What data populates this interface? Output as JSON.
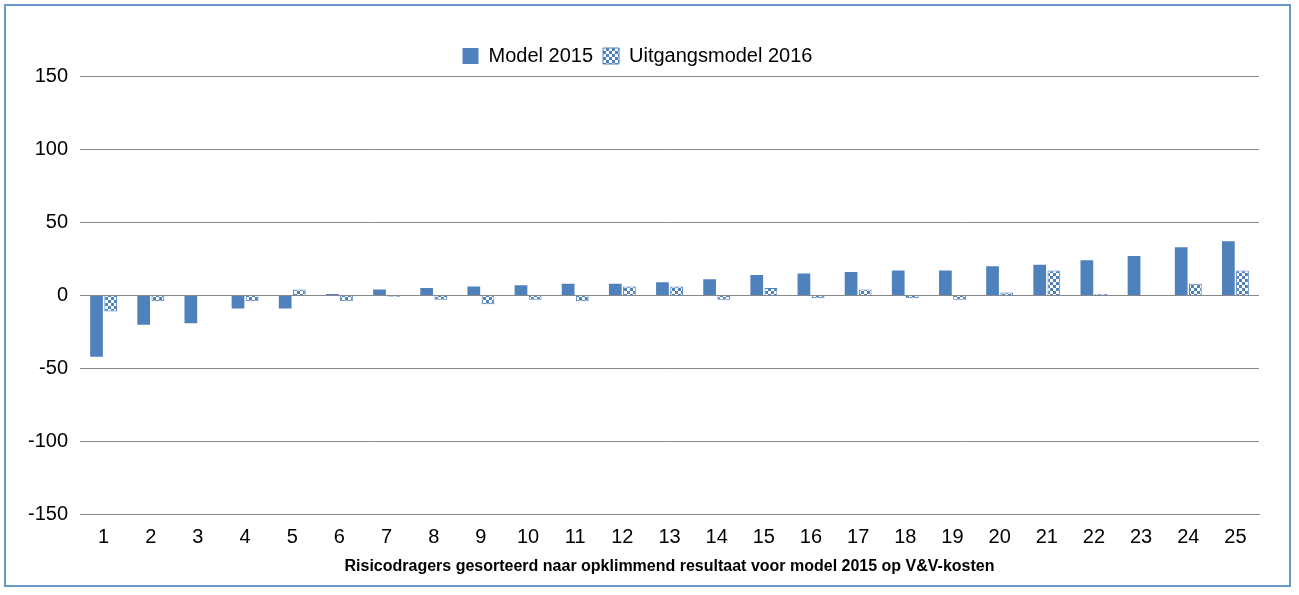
{
  "chart_data": {
    "type": "bar",
    "x_label": "Risicodragers gesorteerd naar opklimmend resultaat voor model 2015 op V&V-kosten",
    "categories": [
      "1",
      "2",
      "3",
      "4",
      "5",
      "6",
      "7",
      "8",
      "9",
      "10",
      "11",
      "12",
      "13",
      "14",
      "15",
      "16",
      "17",
      "18",
      "19",
      "20",
      "21",
      "22",
      "23",
      "24",
      "25"
    ],
    "series": [
      {
        "name": "Model 2015",
        "color": "#4f81bd",
        "values": [
          -42,
          -20,
          -19,
          -9,
          -9,
          1,
          4,
          5,
          6,
          7,
          8,
          8,
          9,
          11,
          14,
          15,
          16,
          17,
          17,
          20,
          21,
          24,
          27,
          33,
          37
        ]
      },
      {
        "name": "Uitgangsmodel 2016",
        "color": "#4f81bd",
        "values": [
          -11,
          -4,
          0,
          -4,
          4,
          -4,
          -1,
          -3,
          -6,
          -3,
          -4,
          6,
          6,
          -3,
          5,
          -2,
          4,
          -2,
          -3,
          2,
          17,
          1,
          0,
          8,
          17
        ]
      }
    ],
    "ylim": [
      -150,
      150
    ],
    "yticks": [
      -150,
      -100,
      -50,
      0,
      50,
      100,
      150
    ],
    "grid": true,
    "legend": "top"
  }
}
